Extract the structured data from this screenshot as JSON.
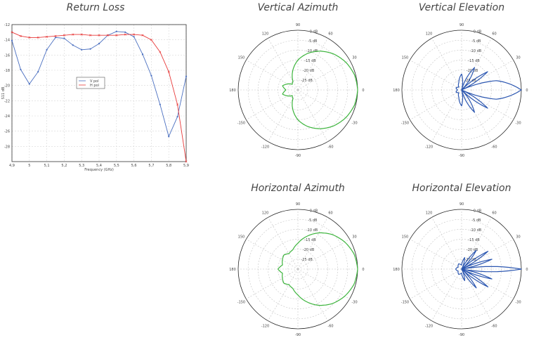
{
  "colors": {
    "vpol": "#4a6fc0",
    "hpol": "#e83a3a",
    "azimuth": "#3cb43c",
    "elevation": "#2b56b0",
    "grid": "#c8c8c8",
    "text": "#444444"
  },
  "chart_data": [
    {
      "type": "line",
      "title": "Return Loss",
      "xlabel": "Frequency (GHz)",
      "ylabel": "S11 dB",
      "xlim": [
        4.9,
        5.9
      ],
      "ylim": [
        -30,
        -12
      ],
      "xticks": [
        "4,9",
        "5",
        "5,1",
        "5,2",
        "5,3",
        "5,4",
        "5,5",
        "5,6",
        "5,7",
        "5,8",
        "5,9"
      ],
      "yticks": [
        "-12",
        "-14",
        "-16",
        "-18",
        "-20",
        "-22",
        "-24",
        "-26",
        "-28"
      ],
      "grid": true,
      "legend_position": "center",
      "series": [
        {
          "name": "V pol",
          "marker": "dot",
          "x": [
            4.9,
            4.95,
            5.0,
            5.05,
            5.1,
            5.15,
            5.2,
            5.25,
            5.3,
            5.35,
            5.4,
            5.45,
            5.5,
            5.55,
            5.6,
            5.65,
            5.7,
            5.75,
            5.8,
            5.85,
            5.9
          ],
          "values": [
            -14.1,
            -17.9,
            -19.8,
            -18.2,
            -15.3,
            -13.7,
            -13.8,
            -14.7,
            -15.3,
            -15.2,
            -14.5,
            -13.4,
            -12.9,
            -13.0,
            -13.6,
            -15.9,
            -18.7,
            -22.5,
            -26.7,
            -24.1,
            -18.8
          ]
        },
        {
          "name": "H pol",
          "marker": "x",
          "x": [
            4.9,
            4.95,
            5.0,
            5.05,
            5.1,
            5.15,
            5.2,
            5.25,
            5.3,
            5.35,
            5.4,
            5.45,
            5.5,
            5.55,
            5.6,
            5.65,
            5.7,
            5.75,
            5.8,
            5.85,
            5.9
          ],
          "values": [
            -13.0,
            -13.5,
            -13.7,
            -13.7,
            -13.6,
            -13.5,
            -13.4,
            -13.3,
            -13.3,
            -13.4,
            -13.4,
            -13.4,
            -13.4,
            -13.3,
            -13.3,
            -13.4,
            -14.0,
            -15.6,
            -18.2,
            -22.5,
            -30.0
          ]
        }
      ]
    },
    {
      "type": "polar",
      "title": "Vertical Azimuth",
      "radial_ticks": [
        "0 dB",
        "-5 dB",
        "-10 dB",
        "-15 dB",
        "-20 dB",
        "-25 dB"
      ],
      "radial_values_db": [
        0,
        -5,
        -10,
        -15,
        -20,
        -25
      ],
      "r_min_db": -30,
      "angle_labels": [
        "0",
        "30",
        "60",
        "90",
        "120",
        "150",
        "180",
        "-150",
        "-120",
        "-90",
        "-60",
        "-30"
      ],
      "series": [
        {
          "color": "green",
          "angles_deg": [
            0,
            15,
            30,
            45,
            60,
            75,
            90,
            105,
            120,
            135,
            150,
            165,
            180
          ],
          "gain_db": [
            0,
            -0.6,
            -2.2,
            -4.5,
            -7.5,
            -11,
            -15,
            -20,
            -25,
            -26,
            -24,
            -22,
            -24
          ]
        }
      ]
    },
    {
      "type": "polar",
      "title": "Vertical Elevation",
      "radial_ticks": [
        "0 dB",
        "-5 dB",
        "-10 dB",
        "-15 dB",
        "-20 dB",
        "-25 dB"
      ],
      "radial_values_db": [
        0,
        -5,
        -10,
        -15,
        -20,
        -25
      ],
      "r_min_db": -30,
      "angle_labels": [
        "0",
        "30",
        "60",
        "90",
        "120",
        "150",
        "180",
        "-150",
        "-120",
        "-90",
        "-60",
        "-30"
      ],
      "series": [
        {
          "color": "blue",
          "angles_deg": [
            0,
            15,
            25,
            35,
            45,
            60,
            75,
            90,
            110,
            135,
            160,
            180
          ],
          "gain_db": [
            0,
            -12,
            -30,
            -14,
            -30,
            -17,
            -30,
            -22,
            -26,
            -28,
            -27,
            -28
          ]
        }
      ]
    },
    {
      "type": "polar",
      "title": "Horizontal Azimuth",
      "radial_ticks": [
        "0 dB",
        "-5 dB",
        "-10 dB",
        "-15 dB",
        "-20 dB",
        "-25 dB"
      ],
      "radial_values_db": [
        0,
        -5,
        -10,
        -15,
        -20,
        -25
      ],
      "r_min_db": -30,
      "angle_labels": [
        "0",
        "30",
        "60",
        "90",
        "120",
        "150",
        "180",
        "-150",
        "-120",
        "-90",
        "-60",
        "-30"
      ],
      "series": [
        {
          "color": "green",
          "angles_deg": [
            0,
            15,
            30,
            45,
            60,
            75,
            90,
            105,
            120,
            135,
            150,
            165,
            180
          ],
          "gain_db": [
            0,
            -0.8,
            -2.8,
            -5.5,
            -9,
            -13,
            -17,
            -20,
            -21,
            -20,
            -21,
            -22,
            -20
          ]
        }
      ]
    },
    {
      "type": "polar",
      "title": "Horizontal Elevation",
      "radial_ticks": [
        "0 dB",
        "-5 dB",
        "-10 dB",
        "-15 dB",
        "-20 dB",
        "-25 dB"
      ],
      "radial_values_db": [
        0,
        -5,
        -10,
        -15,
        -20,
        -25
      ],
      "r_min_db": -30,
      "angle_labels": [
        "0",
        "30",
        "60",
        "90",
        "120",
        "150",
        "180",
        "-150",
        "-120",
        "-90",
        "-60",
        "-30"
      ],
      "series": [
        {
          "color": "blue",
          "angles_deg": [
            0,
            10,
            18,
            26,
            34,
            42,
            52,
            62,
            75,
            90,
            120,
            150,
            180
          ],
          "gain_db": [
            0,
            -30,
            -14,
            -30,
            -14,
            -30,
            -18,
            -30,
            -24,
            -28,
            -27,
            -28,
            -27
          ]
        }
      ]
    }
  ]
}
